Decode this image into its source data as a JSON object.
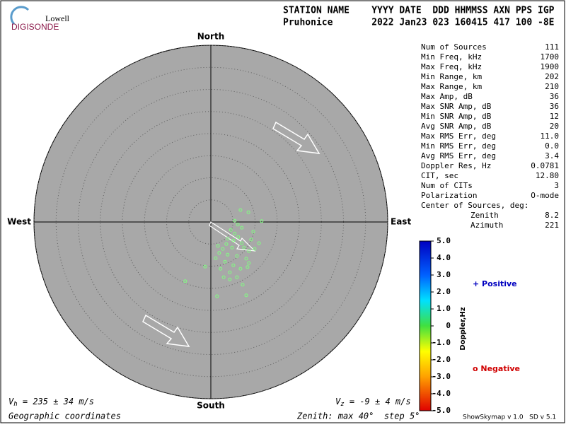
{
  "header": {
    "logo_top": "Lowell",
    "logo_bottom": "DIGISONDE",
    "labels": "STATION NAME    YYYY DATE  DDD HHMMSS AXN PPS IGP",
    "values": "Pruhonice       2022 Jan23 023 160415 417 100 -8E"
  },
  "compass": {
    "north": "North",
    "south": "South",
    "east": "East",
    "west": "West"
  },
  "stats": {
    "rows": [
      [
        "Num of Sources",
        "111"
      ],
      [
        "Min Freq, kHz",
        "1700"
      ],
      [
        "Max Freq, kHz",
        "1900"
      ],
      [
        "Min Range, km",
        "202"
      ],
      [
        "Max Range, km",
        "210"
      ],
      [
        "Max Amp, dB",
        "36"
      ],
      [
        "Max SNR Amp, dB",
        "36"
      ],
      [
        "Min SNR Amp, dB",
        "12"
      ],
      [
        "Avg SNR Amp, dB",
        "20"
      ],
      [
        "Max RMS Err, deg",
        "11.0"
      ],
      [
        "Min RMS Err, deg",
        "0.0"
      ],
      [
        "Avg RMS Err, deg",
        "3.4"
      ],
      [
        "Doppler Res, Hz",
        "0.0781"
      ],
      [
        "CIT, sec",
        "12.80"
      ],
      [
        "Num of CITs",
        "3"
      ],
      [
        "Polarization",
        "O-mode"
      ]
    ],
    "center_heading": "Center of Sources, deg:",
    "center_rows": [
      [
        "Zenith",
        "8.2"
      ],
      [
        "Azimuth",
        "221"
      ]
    ]
  },
  "colorbar": {
    "label": "Doppler,Hz",
    "lim": [
      -5,
      5
    ],
    "ticks": [
      {
        "value": 5,
        "label": "5.0"
      },
      {
        "value": 4,
        "label": "4.0"
      },
      {
        "value": 3,
        "label": "3.0"
      },
      {
        "value": 2,
        "label": "2.0"
      },
      {
        "value": 1,
        "label": "1.0"
      },
      0,
      {
        "value": -1,
        "label": "-1.0"
      },
      {
        "value": -2,
        "label": "-2.0"
      },
      {
        "value": -3,
        "label": "-3.0"
      },
      {
        "value": -4,
        "label": "-4.0"
      },
      {
        "value": -5,
        "label": "-5.0"
      }
    ],
    "positive": "+ Positive",
    "negative": "o Negative"
  },
  "footer": {
    "vh_symbol": "V",
    "vh_sub": "h",
    "vh_text": " = 235 ± 34 m/s",
    "vz_symbol": "V",
    "vz_sub": "z",
    "vz_text": " = -9 ± 4 m/s",
    "coords": "Geographic coordinates",
    "zenith": "Zenith: max 40°  step 5°",
    "version": "ShowSkymap v 1.0   SD v 5.1"
  },
  "chart_data": {
    "type": "scatter",
    "color": "#80ff80",
    "xlim": [
      -40,
      40
    ],
    "ylim": [
      -40,
      40
    ],
    "rings": [
      5,
      10,
      15,
      20,
      25,
      30,
      35,
      40
    ],
    "x": [
      6.7,
      8.5,
      11.5,
      9.6,
      9.1,
      10.9,
      7.5,
      5.4,
      4.5,
      6.2,
      5.1,
      3.5,
      2.7,
      1.9,
      3.8,
      5.9,
      8,
      1.1,
      3.2,
      5.1,
      6.7,
      8.3,
      2.2,
      4.3,
      2.9,
      5.9,
      -1.3,
      -5.8,
      8,
      1.4,
      7.2,
      8.6,
      6.1,
      7,
      5.4,
      3.8,
      4.8,
      1.6,
      7,
      8.6,
      9.9,
      4.3
    ],
    "y": [
      2.7,
      2.2,
      0.2,
      -2.2,
      -4,
      -4.8,
      -5.8,
      -2.6,
      -1.8,
      -3.4,
      -4.2,
      -5,
      -6.1,
      -7,
      -7.4,
      -7.7,
      -8.3,
      -8.2,
      -9,
      -9.8,
      -10.6,
      -10.2,
      -10.6,
      -11.4,
      -12.5,
      -12.5,
      -10.1,
      -13.4,
      -16.6,
      -16.8,
      -14.2,
      -9.3,
      -0.6,
      -1.3,
      0.3,
      -3.8,
      -5.8,
      -5.4,
      -4.8,
      -6.6,
      -6.1,
      -13
    ]
  }
}
